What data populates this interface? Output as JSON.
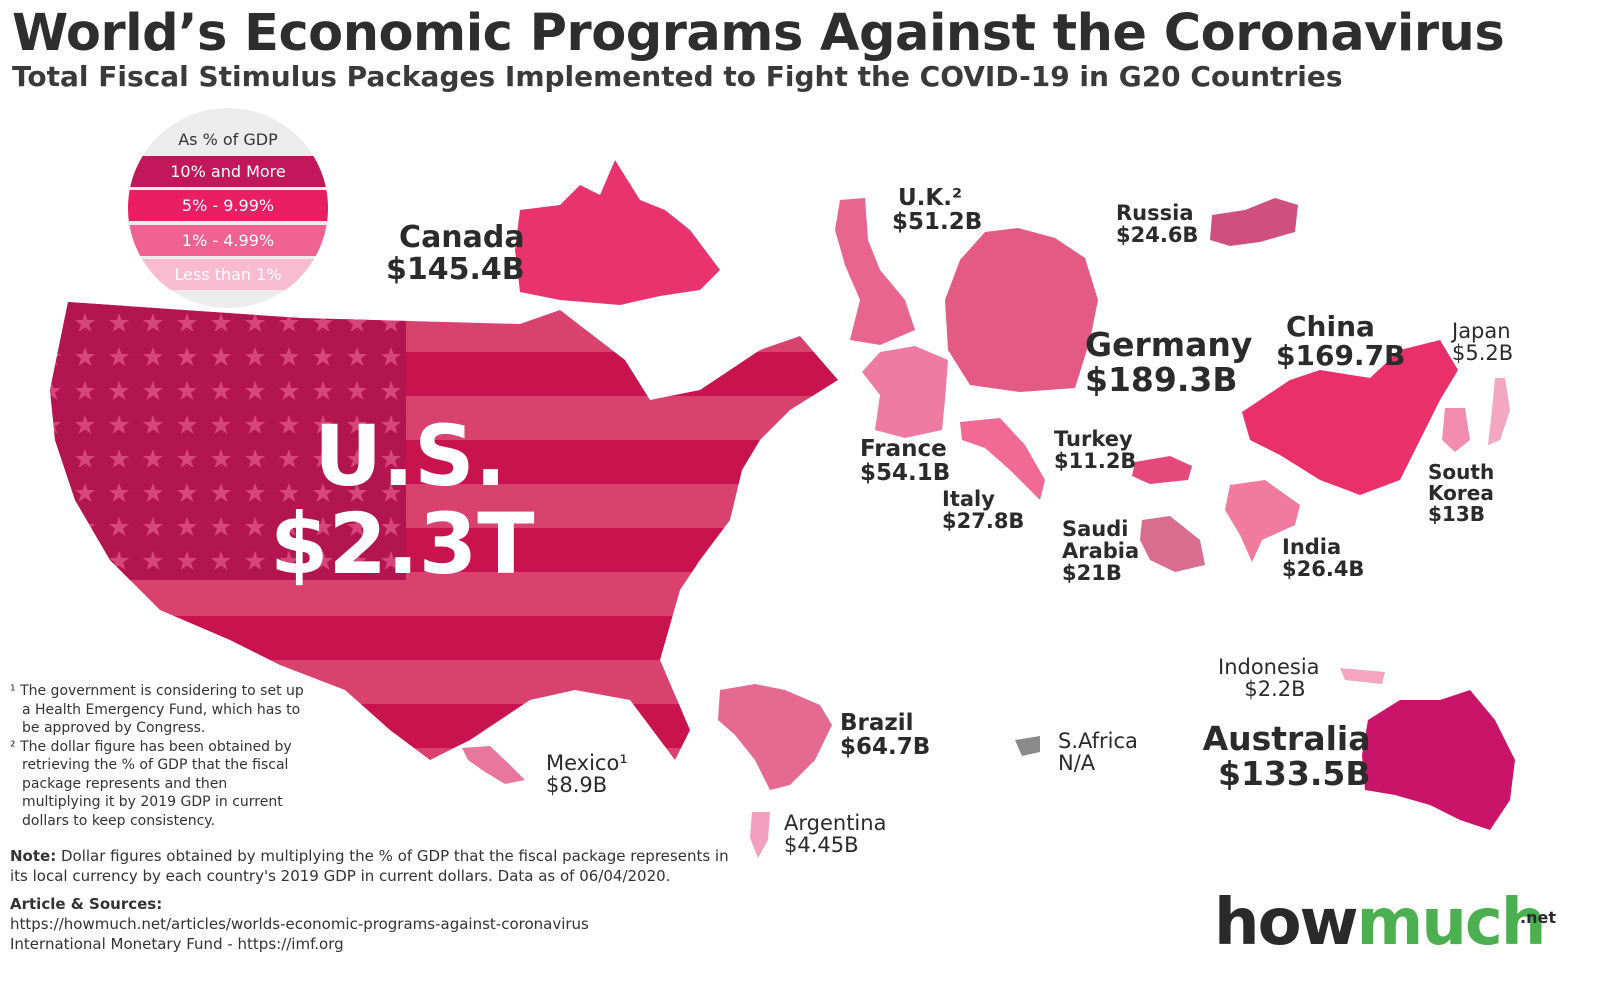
{
  "title": "World’s Economic Programs Against the Coronavirus",
  "subtitle": "Total Fiscal Stimulus Packages Implemented to Fight the COVID-19 in G20 Countries",
  "legend": {
    "heading": "As % of GDP",
    "items": [
      {
        "label": "10% and More",
        "color": "#c2185b"
      },
      {
        "label": "5% - 9.99%",
        "color": "#e91e63"
      },
      {
        "label": "1% - 4.99%",
        "color": "#f06292"
      },
      {
        "label": "Less than 1%",
        "color": "#f8bbd0"
      }
    ]
  },
  "countries": {
    "us": {
      "name": "U.S.",
      "value": "$2.3T"
    },
    "canada": {
      "name": "Canada",
      "value": "$145.4B"
    },
    "uk": {
      "name": "U.K.²",
      "value": "$51.2B"
    },
    "russia": {
      "name": "Russia",
      "value": "$24.6B"
    },
    "germany": {
      "name": "Germany",
      "value": "$189.3B"
    },
    "france": {
      "name": "France",
      "value": "$54.1B"
    },
    "italy": {
      "name": "Italy",
      "value": "$27.8B"
    },
    "turkey": {
      "name": "Turkey",
      "value": "$11.2B"
    },
    "saudi": {
      "name1": "Saudi",
      "name2": "Arabia",
      "value": "$21B"
    },
    "china": {
      "name": "China",
      "value": "$169.7B"
    },
    "japan": {
      "name": "Japan",
      "value": "$5.2B"
    },
    "south_korea": {
      "name1": "South",
      "name2": "Korea",
      "value": "$13B"
    },
    "india": {
      "name": "India",
      "value": "$26.4B"
    },
    "indonesia": {
      "name": "Indonesia",
      "value": "$2.2B"
    },
    "australia": {
      "name": "Australia",
      "value": "$133.5B"
    },
    "brazil": {
      "name": "Brazil",
      "value": "$64.7B"
    },
    "mexico": {
      "name": "Mexico¹",
      "value": "$8.9B"
    },
    "argentina": {
      "name": "Argentina",
      "value": "$4.45B"
    },
    "s_africa": {
      "name": "S.Africa",
      "value": "N/A"
    }
  },
  "footnotes": [
    "¹ The government is considering to set up a Health Emergency Fund, which has to be approved by Congress.",
    "² The dollar figure has been obtained by retrieving the % of GDP that the fiscal package represents and then multiplying it by 2019 GDP in current dollars to keep consistency."
  ],
  "note": {
    "label": "Note:",
    "text": " Dollar figures obtained by multiplying the % of GDP that the fiscal package represents in its local currency by each country's 2019 GDP in current dollars. Data as of 06/04/2020."
  },
  "sources": {
    "heading": "Article & Sources:",
    "lines": [
      "https://howmuch.net/articles/worlds-economic-programs-against-coronavirus",
      "International Monetary Fund - https://imf.org"
    ]
  },
  "brand": {
    "part1": "how",
    "part2": "much",
    "suffix": ".net"
  }
}
